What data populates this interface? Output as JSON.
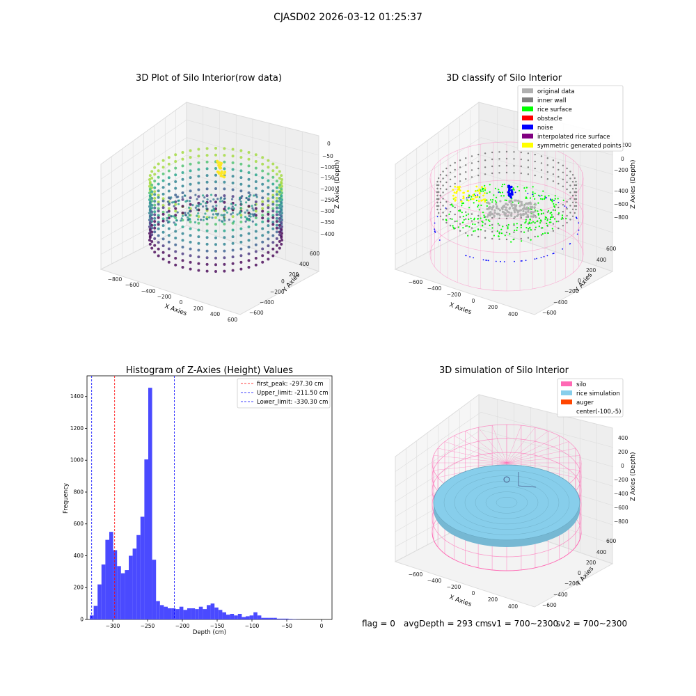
{
  "suptitle": "CJASD02 2026-03-12 01:25:37",
  "footer": {
    "flag": "flag = 0",
    "avg": "avgDepth = 293 cm",
    "sv1": "sv1 = 700~2300",
    "sv2": "sv2 = 700~2300"
  },
  "colors": {
    "bar": "#4a4aff",
    "peak_line": "#ff0000",
    "limit_line": "#0000ff",
    "silo": "#ff69b4",
    "rice": "#87ceeb",
    "auger": "#ff4500",
    "original": "#b0b0b0",
    "inner_wall": "#808080",
    "rice_surface": "#00ff00",
    "obstacle": "#ff0000",
    "noise": "#0000ff",
    "interpolated": "#800080",
    "symmetric": "#ffff00"
  },
  "chart_data": [
    {
      "type": "scatter",
      "title": "3D Plot of Silo Interior(row data)",
      "xlabel": "X Axies",
      "ylabel": "Y Axies",
      "zlabel": "Z Axies (Depth)",
      "xticks": [
        "−800",
        "−600",
        "−400",
        "−200",
        "0",
        "200",
        "400",
        "600"
      ],
      "yticks": [
        "600",
        "400",
        "200",
        "0",
        "−200",
        "−400",
        "−600"
      ],
      "zticks": [
        "0",
        "−50",
        "−100",
        "−150",
        "−200",
        "−250",
        "−300",
        "−350",
        "−400"
      ],
      "colormap": "viridis"
    },
    {
      "type": "scatter",
      "title": "3D classify of Silo Interior",
      "xlabel": "X Axies",
      "ylabel": "Y Axies",
      "zlabel": "Z Axies (Depth)",
      "xticks": [
        "−600",
        "−400",
        "−200",
        "0",
        "200",
        "400"
      ],
      "yticks": [
        "600",
        "400",
        "200",
        "0",
        "−200",
        "−400",
        "−600"
      ],
      "zticks": [
        "200",
        "0",
        "−200",
        "−400",
        "−600",
        "−800"
      ],
      "legend_position": "top-right",
      "legend": [
        {
          "label": "original data",
          "color": "#b0b0b0"
        },
        {
          "label": "inner wall",
          "color": "#808080"
        },
        {
          "label": "rice surface",
          "color": "#00ff00"
        },
        {
          "label": "obstacle",
          "color": "#ff0000"
        },
        {
          "label": "noise",
          "color": "#0000ff"
        },
        {
          "label": "interpolated rice surface",
          "color": "#800080"
        },
        {
          "label": "symmetric generated points",
          "color": "#ffff00"
        }
      ]
    },
    {
      "type": "bar",
      "title": "Histogram of Z-Axies (Height) Values",
      "xlabel": "Depth (cm)",
      "ylabel": "Frequency",
      "xlim": [
        -337,
        15
      ],
      "ylim": [
        0,
        1530
      ],
      "xticks": [
        -300,
        -250,
        -200,
        -150,
        -100,
        -50,
        0
      ],
      "yticks": [
        0,
        200,
        400,
        600,
        800,
        1000,
        1200,
        1400
      ],
      "bin_start": -333,
      "bin_width": 5.6,
      "values": [
        25,
        85,
        220,
        345,
        500,
        550,
        435,
        335,
        290,
        310,
        400,
        445,
        530,
        645,
        1005,
        1455,
        375,
        115,
        90,
        80,
        70,
        70,
        65,
        80,
        60,
        70,
        70,
        65,
        80,
        65,
        90,
        100,
        75,
        60,
        45,
        30,
        35,
        25,
        35,
        15,
        20,
        25,
        45,
        25,
        10,
        10,
        10,
        10,
        5,
        5,
        5,
        3,
        2,
        1
      ],
      "lines": [
        {
          "label": "first_peak: -297.30 cm",
          "x": -297.3,
          "color": "#ff0000"
        },
        {
          "label": "Upper_limit: -211.50 cm",
          "x": -211.5,
          "color": "#0000ff"
        },
        {
          "label": "Lower_limit: -330.30 cm",
          "x": -330.3,
          "color": "#0000ff"
        }
      ],
      "legend_position": "top-right"
    },
    {
      "type": "scatter",
      "title": "3D simulation of Silo Interior",
      "xlabel": "X Axies",
      "ylabel": "Y Axies",
      "zlabel": "Z Axies (Depth)",
      "xticks": [
        "−600",
        "−400",
        "−200",
        "0",
        "200",
        "400"
      ],
      "yticks": [
        "600",
        "400",
        "200",
        "0",
        "−200",
        "−400",
        "−600"
      ],
      "zticks": [
        "400",
        "200",
        "0",
        "−200",
        "−400",
        "−600",
        "−800"
      ],
      "legend_position": "top-right",
      "legend": [
        {
          "label": "silo",
          "color": "#ff69b4"
        },
        {
          "label": "rice simulation",
          "color": "#87ceeb"
        },
        {
          "label": "auger",
          "color": "#ff4500"
        },
        {
          "label": "center(-100,-5)",
          "color": ""
        }
      ]
    }
  ]
}
